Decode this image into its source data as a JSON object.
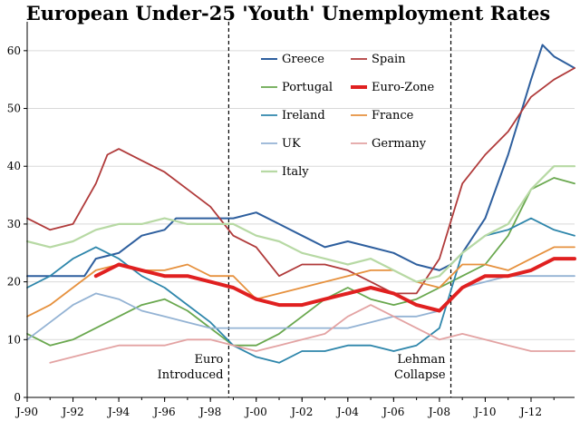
{
  "chart_data": {
    "type": "line",
    "title": "European Under-25 'Youth' Unemployment Rates",
    "xlabel": "",
    "ylabel": "",
    "xlim": [
      1990.0,
      2013.9
    ],
    "ylim": [
      0,
      65
    ],
    "yticks": [
      0,
      10,
      20,
      30,
      40,
      50,
      60
    ],
    "xticks": [
      {
        "label": "J-90",
        "x": 1990
      },
      {
        "label": "J-92",
        "x": 1992
      },
      {
        "label": "J-94",
        "x": 1994
      },
      {
        "label": "J-96",
        "x": 1996
      },
      {
        "label": "J-98",
        "x": 1998
      },
      {
        "label": "J-00",
        "x": 2000
      },
      {
        "label": "J-02",
        "x": 2002
      },
      {
        "label": "J-04",
        "x": 2004
      },
      {
        "label": "J-06",
        "x": 2006
      },
      {
        "label": "J-08",
        "x": 2008
      },
      {
        "label": "J-10",
        "x": 2010
      },
      {
        "label": "J-12",
        "x": 2012
      }
    ],
    "grid": true,
    "legend_position": "top-center",
    "series": [
      {
        "name": "Greece",
        "color": "#2e5f9e",
        "width": 2,
        "points": [
          [
            1990,
            21
          ],
          [
            1992.5,
            21
          ],
          [
            1993,
            24
          ],
          [
            1994,
            25
          ],
          [
            1995,
            28
          ],
          [
            1996,
            29
          ],
          [
            1996.5,
            31
          ],
          [
            1998,
            31
          ],
          [
            1999,
            31
          ],
          [
            2000,
            32
          ],
          [
            2001,
            30
          ],
          [
            2002,
            28
          ],
          [
            2003,
            26
          ],
          [
            2004,
            27
          ],
          [
            2005,
            26
          ],
          [
            2006,
            25
          ],
          [
            2007,
            23
          ],
          [
            2008,
            22
          ],
          [
            2008.5,
            23
          ],
          [
            2009,
            25
          ],
          [
            2010,
            31
          ],
          [
            2011,
            42
          ],
          [
            2012,
            55
          ],
          [
            2012.5,
            61
          ],
          [
            2013,
            59
          ],
          [
            2013.9,
            57
          ]
        ]
      },
      {
        "name": "Spain",
        "color": "#b03a3a",
        "width": 1.8,
        "points": [
          [
            1990,
            31
          ],
          [
            1991,
            29
          ],
          [
            1992,
            30
          ],
          [
            1993,
            37
          ],
          [
            1993.5,
            42
          ],
          [
            1994,
            43
          ],
          [
            1995,
            41
          ],
          [
            1996,
            39
          ],
          [
            1997,
            36
          ],
          [
            1998,
            33
          ],
          [
            1999,
            28
          ],
          [
            2000,
            26
          ],
          [
            2001,
            21
          ],
          [
            2002,
            23
          ],
          [
            2003,
            23
          ],
          [
            2004,
            22
          ],
          [
            2005,
            20
          ],
          [
            2006,
            18
          ],
          [
            2007,
            18
          ],
          [
            2008,
            24
          ],
          [
            2009,
            37
          ],
          [
            2010,
            42
          ],
          [
            2011,
            46
          ],
          [
            2012,
            52
          ],
          [
            2013,
            55
          ],
          [
            2013.9,
            57
          ]
        ]
      },
      {
        "name": "Portugal",
        "color": "#6aa84f",
        "width": 1.8,
        "points": [
          [
            1990,
            11
          ],
          [
            1991,
            9
          ],
          [
            1992,
            10
          ],
          [
            1993,
            12
          ],
          [
            1994,
            14
          ],
          [
            1995,
            16
          ],
          [
            1996,
            17
          ],
          [
            1997,
            15
          ],
          [
            1998,
            12
          ],
          [
            1999,
            9
          ],
          [
            2000,
            9
          ],
          [
            2001,
            11
          ],
          [
            2002,
            14
          ],
          [
            2003,
            17
          ],
          [
            2004,
            19
          ],
          [
            2005,
            17
          ],
          [
            2006,
            16
          ],
          [
            2007,
            17
          ],
          [
            2008,
            19
          ],
          [
            2009,
            21
          ],
          [
            2010,
            23
          ],
          [
            2011,
            28
          ],
          [
            2012,
            36
          ],
          [
            2013,
            38
          ],
          [
            2013.9,
            37
          ]
        ]
      },
      {
        "name": "Euro-Zone",
        "color": "#e02020",
        "width": 4,
        "points": [
          [
            1993,
            21
          ],
          [
            1994,
            23
          ],
          [
            1995,
            22
          ],
          [
            1996,
            21
          ],
          [
            1997,
            21
          ],
          [
            1998,
            20
          ],
          [
            1999,
            19
          ],
          [
            2000,
            17
          ],
          [
            2001,
            16
          ],
          [
            2002,
            16
          ],
          [
            2003,
            17
          ],
          [
            2004,
            18
          ],
          [
            2005,
            19
          ],
          [
            2006,
            18
          ],
          [
            2007,
            16
          ],
          [
            2008,
            15
          ],
          [
            2009,
            19
          ],
          [
            2010,
            21
          ],
          [
            2011,
            21
          ],
          [
            2012,
            22
          ],
          [
            2013,
            24
          ],
          [
            2013.9,
            24
          ]
        ]
      },
      {
        "name": "Ireland",
        "color": "#2e86ab",
        "width": 1.8,
        "points": [
          [
            1990,
            19
          ],
          [
            1991,
            21
          ],
          [
            1992,
            24
          ],
          [
            1993,
            26
          ],
          [
            1994,
            24
          ],
          [
            1995,
            21
          ],
          [
            1996,
            19
          ],
          [
            1997,
            16
          ],
          [
            1998,
            13
          ],
          [
            1999,
            9
          ],
          [
            2000,
            7
          ],
          [
            2001,
            6
          ],
          [
            2002,
            8
          ],
          [
            2003,
            8
          ],
          [
            2004,
            9
          ],
          [
            2005,
            9
          ],
          [
            2006,
            8
          ],
          [
            2007,
            9
          ],
          [
            2008,
            12
          ],
          [
            2009,
            25
          ],
          [
            2010,
            28
          ],
          [
            2011,
            29
          ],
          [
            2012,
            31
          ],
          [
            2013,
            29
          ],
          [
            2013.9,
            28
          ]
        ]
      },
      {
        "name": "France",
        "color": "#e6913e",
        "width": 1.8,
        "points": [
          [
            1990,
            14
          ],
          [
            1991,
            16
          ],
          [
            1992,
            19
          ],
          [
            1993,
            22
          ],
          [
            1994,
            23
          ],
          [
            1995,
            22
          ],
          [
            1996,
            22
          ],
          [
            1997,
            23
          ],
          [
            1998,
            21
          ],
          [
            1999,
            21
          ],
          [
            2000,
            17
          ],
          [
            2001,
            18
          ],
          [
            2002,
            19
          ],
          [
            2003,
            20
          ],
          [
            2004,
            21
          ],
          [
            2005,
            22
          ],
          [
            2006,
            22
          ],
          [
            2007,
            20
          ],
          [
            2008,
            19
          ],
          [
            2009,
            23
          ],
          [
            2010,
            23
          ],
          [
            2011,
            22
          ],
          [
            2012,
            24
          ],
          [
            2013,
            26
          ],
          [
            2013.9,
            26
          ]
        ]
      },
      {
        "name": "UK",
        "color": "#94b3d4",
        "width": 1.8,
        "points": [
          [
            1990,
            10
          ],
          [
            1991,
            13
          ],
          [
            1992,
            16
          ],
          [
            1993,
            18
          ],
          [
            1994,
            17
          ],
          [
            1995,
            15
          ],
          [
            1996,
            14
          ],
          [
            1997,
            13
          ],
          [
            1998,
            12
          ],
          [
            1999,
            12
          ],
          [
            2000,
            12
          ],
          [
            2001,
            12
          ],
          [
            2002,
            12
          ],
          [
            2003,
            12
          ],
          [
            2004,
            12
          ],
          [
            2005,
            13
          ],
          [
            2006,
            14
          ],
          [
            2007,
            14
          ],
          [
            2008,
            15
          ],
          [
            2009,
            19
          ],
          [
            2010,
            20
          ],
          [
            2011,
            21
          ],
          [
            2012,
            21
          ],
          [
            2013,
            21
          ],
          [
            2013.9,
            21
          ]
        ]
      },
      {
        "name": "Germany",
        "color": "#e3a3a3",
        "width": 1.8,
        "points": [
          [
            1991,
            6
          ],
          [
            1992,
            7
          ],
          [
            1993,
            8
          ],
          [
            1994,
            9
          ],
          [
            1995,
            9
          ],
          [
            1996,
            9
          ],
          [
            1997,
            10
          ],
          [
            1998,
            10
          ],
          [
            1999,
            9
          ],
          [
            2000,
            8
          ],
          [
            2001,
            9
          ],
          [
            2002,
            10
          ],
          [
            2003,
            11
          ],
          [
            2004,
            14
          ],
          [
            2005,
            16
          ],
          [
            2006,
            14
          ],
          [
            2007,
            12
          ],
          [
            2008,
            10
          ],
          [
            2009,
            11
          ],
          [
            2010,
            10
          ],
          [
            2011,
            9
          ],
          [
            2012,
            8
          ],
          [
            2013,
            8
          ],
          [
            2013.9,
            8
          ]
        ]
      },
      {
        "name": "Italy",
        "color": "#b7d9a4",
        "width": 2.2,
        "points": [
          [
            1990,
            27
          ],
          [
            1991,
            26
          ],
          [
            1992,
            27
          ],
          [
            1993,
            29
          ],
          [
            1994,
            30
          ],
          [
            1995,
            30
          ],
          [
            1996,
            31
          ],
          [
            1997,
            30
          ],
          [
            1998,
            30
          ],
          [
            1999,
            30
          ],
          [
            2000,
            28
          ],
          [
            2001,
            27
          ],
          [
            2002,
            25
          ],
          [
            2003,
            24
          ],
          [
            2004,
            23
          ],
          [
            2005,
            24
          ],
          [
            2006,
            22
          ],
          [
            2007,
            20
          ],
          [
            2008,
            21
          ],
          [
            2009,
            25
          ],
          [
            2010,
            28
          ],
          [
            2011,
            30
          ],
          [
            2012,
            36
          ],
          [
            2013,
            40
          ],
          [
            2013.9,
            40
          ]
        ]
      }
    ],
    "annotations": [
      {
        "x": 1998.8,
        "lines": [
          "Euro",
          "Introduced"
        ]
      },
      {
        "x": 2008.5,
        "lines": [
          "Lehman",
          "Collapse"
        ]
      }
    ]
  }
}
